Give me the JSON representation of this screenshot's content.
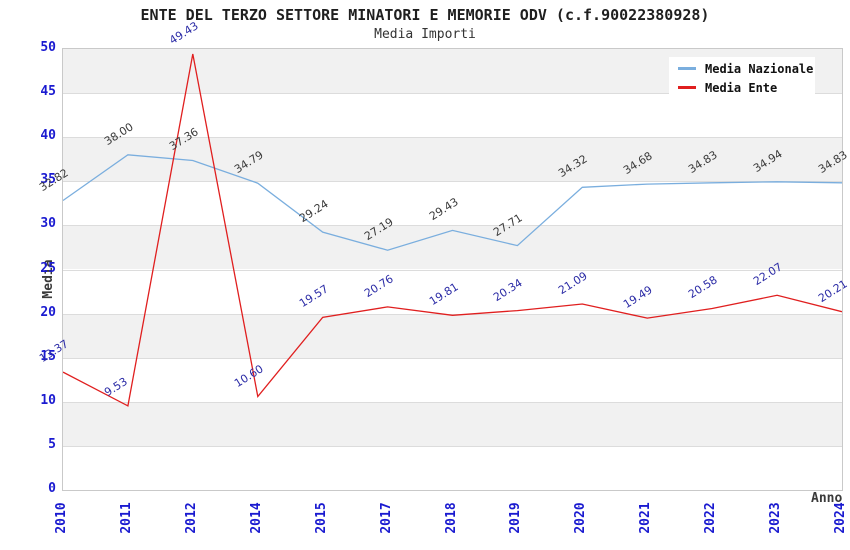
{
  "header": {
    "title": "ENTE DEL TERZO SETTORE MINATORI E MEMORIE ODV (c.f.90022380928)",
    "subtitle": "Media Importi"
  },
  "axes": {
    "y_label": "Media",
    "x_label": "Anno",
    "y_ticks": [
      0,
      5,
      10,
      15,
      20,
      25,
      30,
      35,
      40,
      45,
      50
    ],
    "tick_color": "#1a1ad0"
  },
  "chart_data": {
    "type": "line",
    "title": "ENTE DEL TERZO SETTORE MINATORI E MEMORIE ODV (c.f.90022380928)",
    "subtitle": "Media Importi",
    "xlabel": "Anno",
    "ylabel": "Media",
    "ylim": [
      0,
      50
    ],
    "ytick_step": 5,
    "grid": "horizontal-bands",
    "legend_position": "top-right",
    "categories": [
      "2010",
      "2011",
      "2012",
      "2014",
      "2015",
      "2017",
      "2018",
      "2019",
      "2020",
      "2021",
      "2022",
      "2023",
      "2024"
    ],
    "series": [
      {
        "name": "Media Nazionale",
        "color": "#7aaede",
        "label_color": "#3a3a3a",
        "values": [
          32.82,
          38.0,
          37.36,
          34.79,
          29.24,
          27.19,
          29.43,
          27.71,
          34.32,
          34.68,
          34.83,
          34.94,
          34.83
        ]
      },
      {
        "name": "Media Ente",
        "color": "#e01f1f",
        "label_color": "#2b2ba6",
        "values": [
          13.37,
          9.53,
          49.43,
          10.6,
          19.57,
          20.76,
          19.81,
          20.34,
          21.09,
          19.49,
          20.58,
          22.07,
          20.21
        ]
      }
    ]
  }
}
